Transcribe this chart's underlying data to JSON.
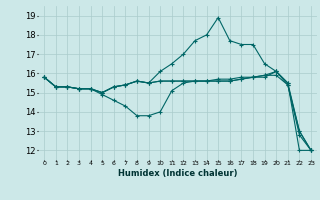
{
  "xlabel": "Humidex (Indice chaleur)",
  "bg_color": "#cce8e8",
  "grid_color": "#aacccc",
  "line_color": "#006666",
  "xlim": [
    -0.5,
    23.5
  ],
  "ylim": [
    11.5,
    19.5
  ],
  "yticks": [
    12,
    13,
    14,
    15,
    16,
    17,
    18,
    19
  ],
  "xticks": [
    0,
    1,
    2,
    3,
    4,
    5,
    6,
    7,
    8,
    9,
    10,
    11,
    12,
    13,
    14,
    15,
    16,
    17,
    18,
    19,
    20,
    21,
    22,
    23
  ],
  "series": [
    [
      15.8,
      15.3,
      15.3,
      15.2,
      15.2,
      14.9,
      14.6,
      14.3,
      13.8,
      13.8,
      14.0,
      15.1,
      15.5,
      15.6,
      15.6,
      15.7,
      15.7,
      15.8,
      15.8,
      15.8,
      16.1,
      15.5,
      12.0,
      12.0
    ],
    [
      15.8,
      15.3,
      15.3,
      15.2,
      15.2,
      15.0,
      15.3,
      15.4,
      15.6,
      15.5,
      15.6,
      15.6,
      15.6,
      15.6,
      15.6,
      15.6,
      15.6,
      15.7,
      15.8,
      15.9,
      16.1,
      15.5,
      13.0,
      12.0
    ],
    [
      15.8,
      15.3,
      15.3,
      15.2,
      15.2,
      15.0,
      15.3,
      15.4,
      15.6,
      15.5,
      15.6,
      15.6,
      15.6,
      15.6,
      15.6,
      15.6,
      15.6,
      15.7,
      15.8,
      15.9,
      15.9,
      15.4,
      12.8,
      12.0
    ],
    [
      15.8,
      15.3,
      15.3,
      15.2,
      15.2,
      15.0,
      15.3,
      15.4,
      15.6,
      15.5,
      16.1,
      16.5,
      17.0,
      17.7,
      18.0,
      18.9,
      17.7,
      17.5,
      17.5,
      16.5,
      16.1,
      15.4,
      13.0,
      12.0
    ]
  ]
}
